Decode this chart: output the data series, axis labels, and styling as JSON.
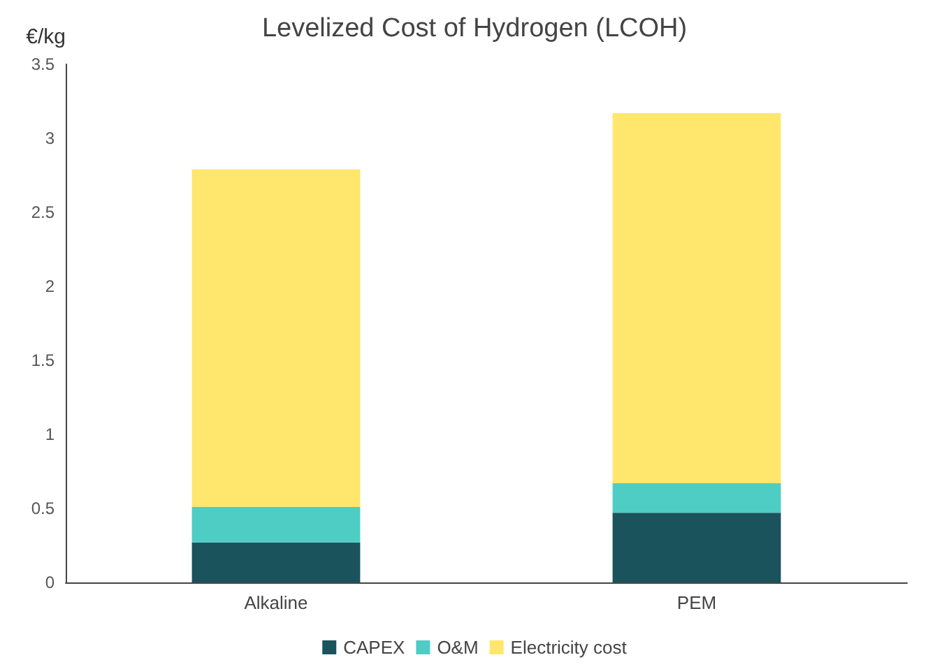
{
  "chart_data": {
    "type": "bar",
    "title": "Levelized Cost of Hydrogen (LCOH)",
    "ylabel": "€/kg",
    "categories": [
      "Alkaline",
      "PEM"
    ],
    "stacked": true,
    "series": [
      {
        "name": "CAPEX",
        "color": "#1a535c",
        "values": [
          0.27,
          0.47
        ]
      },
      {
        "name": "O&M",
        "color": "#4ecdc4",
        "values": [
          0.24,
          0.2
        ]
      },
      {
        "name": "Electricity cost",
        "color": "#ffe66d",
        "values": [
          2.28,
          2.5
        ]
      }
    ],
    "ylim": [
      0,
      3.5
    ],
    "yticks": [
      0,
      0.5,
      1,
      1.5,
      2,
      2.5,
      3,
      3.5
    ],
    "grid": false,
    "legend": "bottom"
  }
}
